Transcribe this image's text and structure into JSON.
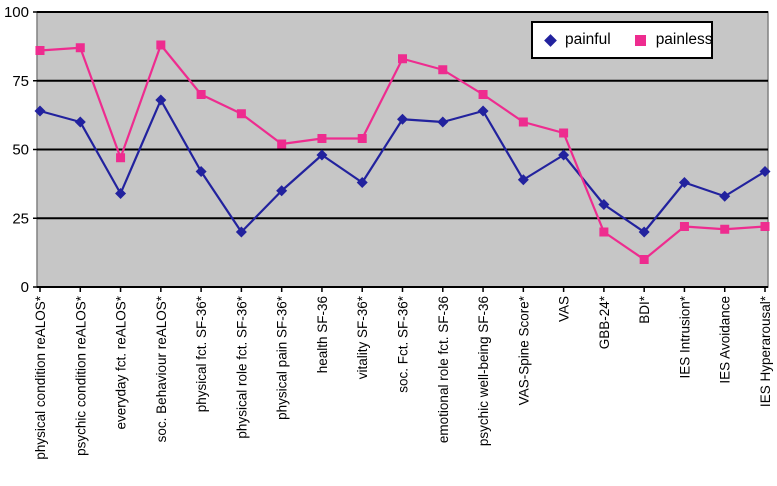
{
  "chart_data": {
    "type": "line",
    "title": "",
    "xlabel": "",
    "ylabel": "",
    "ylim": [
      0,
      100
    ],
    "yticks": [
      0,
      25,
      50,
      75,
      100
    ],
    "grid": "horizontal-black-lines",
    "plot_background": "#c6c6c6",
    "gridline_color": "#000000",
    "plot_border_color": "#808080",
    "legend_position": "top-right",
    "categories": [
      "physical condition reALOS*",
      "psychic condition reALOS*",
      "everyday fct. reALOS*",
      "soc. Behaviour reALOS*",
      "physical fct. SF-36*",
      "physical role fct. SF-36*",
      "physical pain SF-36*",
      "health SF-36",
      "vitality SF-36*",
      "soc. Fct. SF-36*",
      "emotional role fct. SF-36",
      "psychic well-being SF-36",
      "VAS-Spine Score*",
      "VAS",
      "GBB-24*",
      "BDI*",
      "IES Intrusion*",
      "IES Avoidance",
      "IES Hyperarousal*"
    ],
    "series": [
      {
        "name": "painful",
        "marker": "diamond",
        "color": "#22229e",
        "values": [
          64,
          60,
          34,
          68,
          42,
          20,
          35,
          48,
          38,
          61,
          60,
          64,
          39,
          48,
          30,
          20,
          38,
          33,
          42
        ]
      },
      {
        "name": "painless",
        "marker": "square",
        "color": "#ee2c8f",
        "values": [
          86,
          87,
          47,
          88,
          70,
          63,
          52,
          54,
          54,
          83,
          79,
          70,
          60,
          56,
          20,
          10,
          22,
          21,
          22
        ]
      }
    ]
  }
}
